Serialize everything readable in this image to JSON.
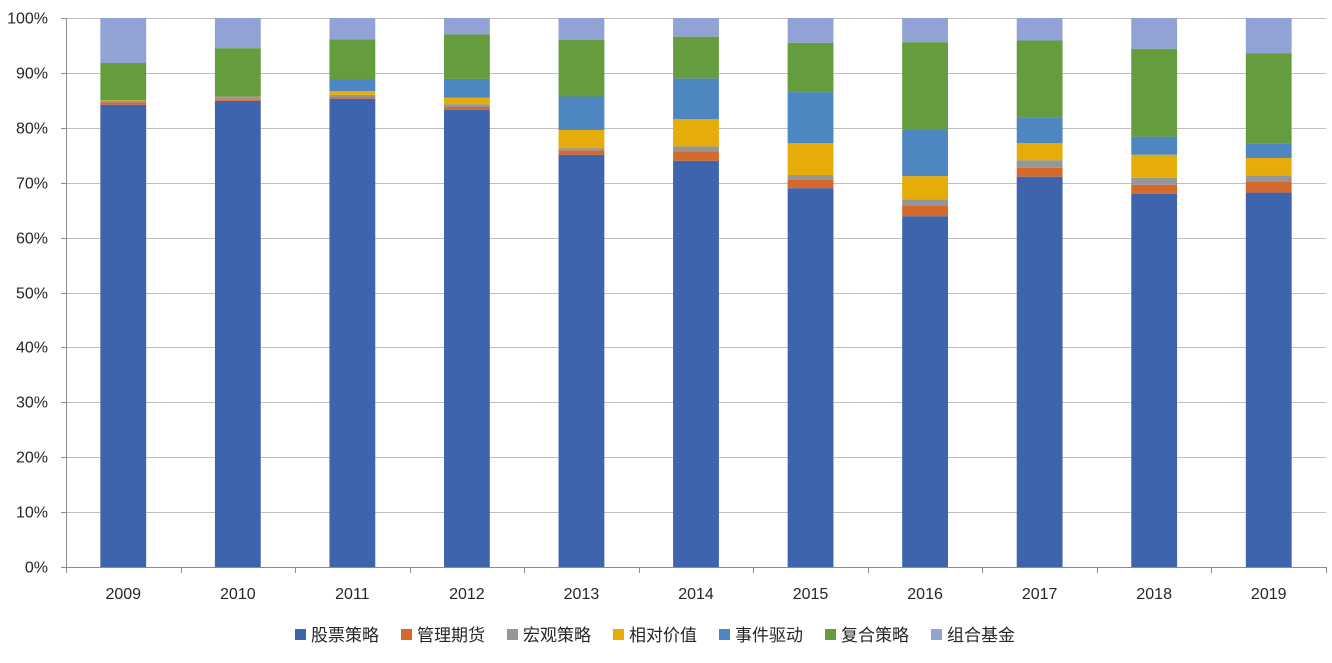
{
  "chart_data": {
    "type": "bar",
    "stacked": true,
    "title": "",
    "xlabel": "",
    "ylabel": "",
    "ylim": [
      0,
      100
    ],
    "y_ticks": [
      "0%",
      "10%",
      "20%",
      "30%",
      "40%",
      "50%",
      "60%",
      "70%",
      "80%",
      "90%",
      "100%"
    ],
    "y_tick_values": [
      0,
      10,
      20,
      30,
      40,
      50,
      60,
      70,
      80,
      90,
      100
    ],
    "grid": true,
    "legend_position": "bottom",
    "categories": [
      "2009",
      "2010",
      "2011",
      "2012",
      "2013",
      "2014",
      "2015",
      "2016",
      "2017",
      "2018",
      "2019"
    ],
    "series": [
      {
        "name": "股票策略",
        "color": "#3E64AE",
        "values": [
          84.2,
          84.9,
          85.3,
          83.3,
          75.1,
          74.0,
          69.0,
          63.9,
          71.1,
          68.0,
          68.2
        ]
      },
      {
        "name": "管理期货",
        "color": "#D5692C",
        "values": [
          0.4,
          0.3,
          0.3,
          0.5,
          0.8,
          1.7,
          1.5,
          2.0,
          1.6,
          1.6,
          2.0
        ]
      },
      {
        "name": "宏观策略",
        "color": "#969696",
        "values": [
          0.3,
          0.4,
          0.4,
          0.5,
          0.4,
          0.9,
          0.9,
          1.1,
          1.4,
          1.3,
          1.1
        ]
      },
      {
        "name": "相对价值",
        "color": "#E6AC0A",
        "values": [
          0.1,
          0.1,
          0.7,
          1.2,
          3.3,
          5.0,
          5.8,
          4.2,
          3.1,
          4.2,
          3.2
        ]
      },
      {
        "name": "事件驱动",
        "color": "#4D86C0",
        "values": [
          0.0,
          0.1,
          2.1,
          3.4,
          6.1,
          7.4,
          9.3,
          8.5,
          4.7,
          3.3,
          2.7
        ]
      },
      {
        "name": "复合策略",
        "color": "#659C3D",
        "values": [
          6.8,
          8.7,
          7.3,
          8.1,
          10.3,
          7.6,
          9.0,
          15.9,
          14.0,
          16.0,
          16.4
        ]
      },
      {
        "name": "组合基金",
        "color": "#91A3D5",
        "values": [
          8.2,
          5.5,
          3.9,
          3.0,
          4.0,
          3.4,
          4.5,
          4.4,
          4.1,
          5.6,
          6.4
        ]
      }
    ]
  }
}
